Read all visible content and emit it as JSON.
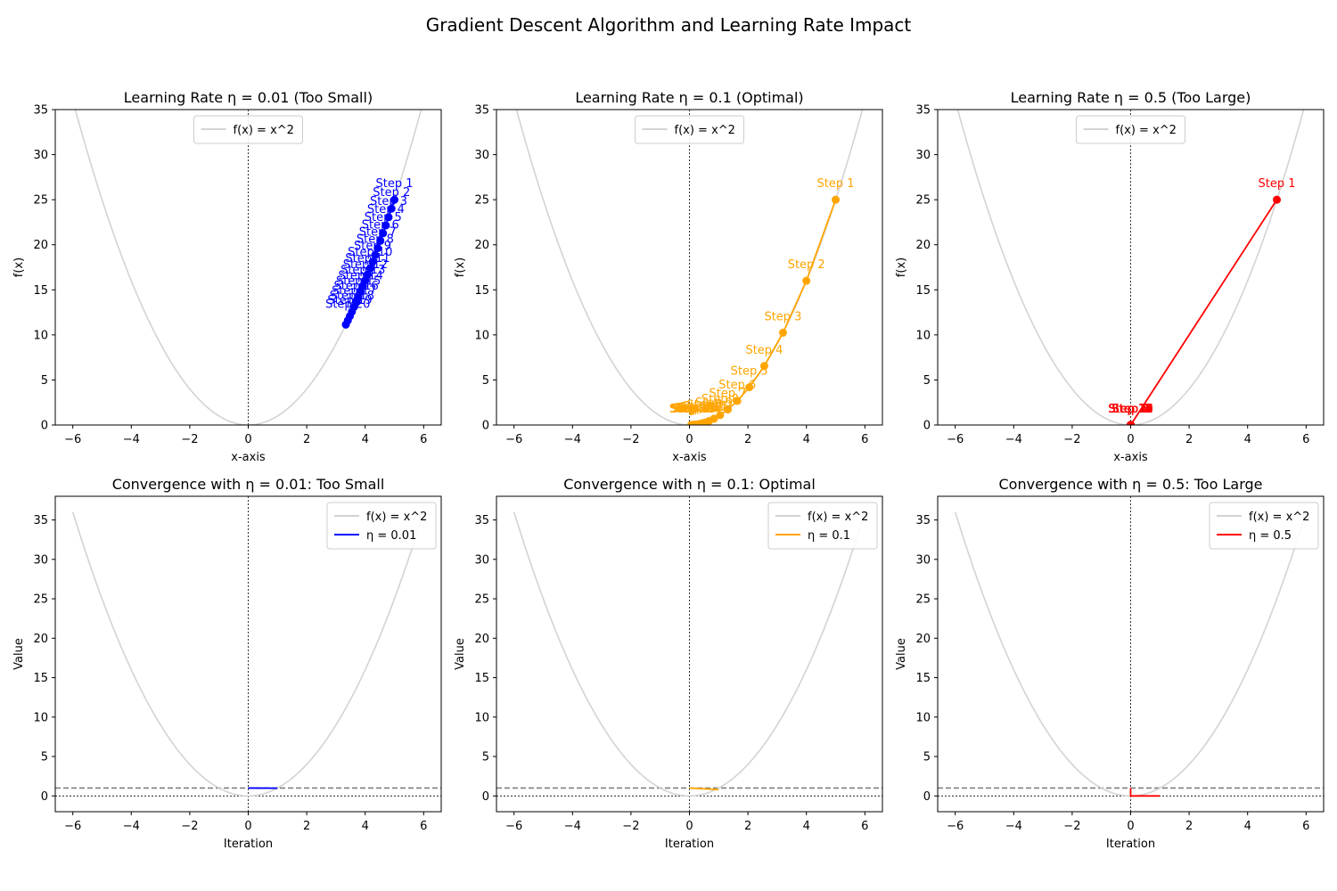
{
  "figure": {
    "title": "Gradient Descent Algorithm and Learning Rate Impact"
  },
  "colors": {
    "curve": "#d3d3d3",
    "eta_001": "#0000ff",
    "eta_01": "#ffa500",
    "eta_05": "#ff0000",
    "threshold": "#808080"
  },
  "chart_data": [
    {
      "type": "line",
      "title": "Learning Rate η = 0.01 (Too Small)",
      "xlabel": "x-axis",
      "ylabel": "f(x)",
      "xlim": [
        -6.6,
        6.6
      ],
      "ylim": [
        0,
        35
      ],
      "xticks": [
        -6,
        -4,
        -2,
        0,
        2,
        4,
        6
      ],
      "yticks": [
        0,
        5,
        10,
        15,
        20,
        25,
        30,
        35
      ],
      "legend": {
        "position": "upper-center",
        "entries": [
          "f(x) = x^2"
        ]
      },
      "curve": {
        "name": "f(x) = x^2",
        "x_range": [
          -6,
          6
        ],
        "function": "x^2"
      },
      "path": {
        "color_key": "eta_001",
        "annotation_prefix": "Step",
        "annotation_count": 20,
        "x": [
          5.0,
          4.9,
          4.802,
          4.706,
          4.612,
          4.52,
          4.429,
          4.341,
          4.254,
          4.169,
          4.085,
          4.004,
          3.924,
          3.845,
          3.768,
          3.693,
          3.619,
          3.547,
          3.476,
          3.406,
          3.338
        ],
        "y": [
          25.0,
          24.01,
          23.06,
          22.15,
          21.27,
          20.43,
          19.62,
          18.84,
          18.1,
          17.38,
          16.69,
          16.03,
          15.4,
          14.79,
          14.2,
          13.64,
          13.1,
          12.58,
          12.08,
          11.6,
          11.14
        ]
      }
    },
    {
      "type": "line",
      "title": "Learning Rate η = 0.1 (Optimal)",
      "xlabel": "x-axis",
      "ylabel": "f(x)",
      "xlim": [
        -6.6,
        6.6
      ],
      "ylim": [
        0,
        35
      ],
      "xticks": [
        -6,
        -4,
        -2,
        0,
        2,
        4,
        6
      ],
      "yticks": [
        0,
        5,
        10,
        15,
        20,
        25,
        30,
        35
      ],
      "legend": {
        "position": "upper-center",
        "entries": [
          "f(x) = x^2"
        ]
      },
      "curve": {
        "name": "f(x) = x^2",
        "x_range": [
          -6,
          6
        ],
        "function": "x^2"
      },
      "path": {
        "color_key": "eta_01",
        "annotation_prefix": "Step",
        "annotation_count": 20,
        "x": [
          5.0,
          4.0,
          3.2,
          2.56,
          2.048,
          1.638,
          1.311,
          1.049,
          0.839,
          0.671,
          0.537,
          0.429,
          0.344,
          0.275,
          0.22,
          0.176,
          0.141,
          0.113,
          0.09,
          0.072,
          0.058
        ],
        "y": [
          25.0,
          16.0,
          10.24,
          6.55,
          4.19,
          2.68,
          1.72,
          1.1,
          0.7,
          0.45,
          0.29,
          0.18,
          0.12,
          0.08,
          0.05,
          0.03,
          0.02,
          0.01,
          0.01,
          0.01,
          0.0
        ]
      }
    },
    {
      "type": "line",
      "title": "Learning Rate η = 0.5 (Too Large)",
      "xlabel": "x-axis",
      "ylabel": "f(x)",
      "xlim": [
        -6.6,
        6.6
      ],
      "ylim": [
        0,
        35
      ],
      "xticks": [
        -6,
        -4,
        -2,
        0,
        2,
        4,
        6
      ],
      "yticks": [
        0,
        5,
        10,
        15,
        20,
        25,
        30,
        35
      ],
      "legend": {
        "position": "upper-center",
        "entries": [
          "f(x) = x^2"
        ]
      },
      "curve": {
        "name": "f(x) = x^2",
        "x_range": [
          -6,
          6
        ],
        "function": "x^2"
      },
      "path": {
        "color_key": "eta_05",
        "annotation_prefix": "Step",
        "annotation_count": 20,
        "x": [
          5.0,
          0,
          0,
          0,
          0,
          0,
          0,
          0,
          0,
          0,
          0,
          0,
          0,
          0,
          0,
          0,
          0,
          0,
          0,
          0,
          0
        ],
        "y": [
          25.0,
          0,
          0,
          0,
          0,
          0,
          0,
          0,
          0,
          0,
          0,
          0,
          0,
          0,
          0,
          0,
          0,
          0,
          0,
          0,
          0
        ]
      }
    },
    {
      "type": "line",
      "title": "Convergence with η = 0.01: Too Small",
      "xlabel": "Iteration",
      "ylabel": "Value",
      "xlim": [
        -6.6,
        6.6
      ],
      "ylim": [
        -2,
        38
      ],
      "xticks": [
        -6,
        -4,
        -2,
        0,
        2,
        4,
        6
      ],
      "yticks": [
        0,
        5,
        10,
        15,
        20,
        25,
        30,
        35
      ],
      "legend": {
        "position": "upper-right",
        "entries": [
          "f(x) = x^2",
          "η = 0.01"
        ]
      },
      "curve": {
        "name": "f(x) = x^2",
        "x_range": [
          -6,
          6
        ],
        "function": "x^2"
      },
      "threshold_y": 1,
      "series": [
        {
          "name": "η = 0.01",
          "color_key": "eta_001",
          "x": [
            0,
            1
          ],
          "y": [
            1.0,
            0.98
          ]
        }
      ]
    },
    {
      "type": "line",
      "title": "Convergence with η = 0.1: Optimal",
      "xlabel": "Iteration",
      "ylabel": "Value",
      "xlim": [
        -6.6,
        6.6
      ],
      "ylim": [
        -2,
        38
      ],
      "xticks": [
        -6,
        -4,
        -2,
        0,
        2,
        4,
        6
      ],
      "yticks": [
        0,
        5,
        10,
        15,
        20,
        25,
        30,
        35
      ],
      "legend": {
        "position": "upper-right",
        "entries": [
          "f(x) = x^2",
          "η = 0.1"
        ]
      },
      "curve": {
        "name": "f(x) = x^2",
        "x_range": [
          -6,
          6
        ],
        "function": "x^2"
      },
      "threshold_y": 1,
      "series": [
        {
          "name": "η = 0.1",
          "color_key": "eta_01",
          "x": [
            0,
            1
          ],
          "y": [
            1.0,
            0.8
          ]
        }
      ]
    },
    {
      "type": "line",
      "title": "Convergence with η = 0.5: Too Large",
      "xlabel": "Iteration",
      "ylabel": "Value",
      "xlim": [
        -6.6,
        6.6
      ],
      "ylim": [
        -2,
        38
      ],
      "xticks": [
        -6,
        -4,
        -2,
        0,
        2,
        4,
        6
      ],
      "yticks": [
        0,
        5,
        10,
        15,
        20,
        25,
        30,
        35
      ],
      "legend": {
        "position": "upper-right",
        "entries": [
          "f(x) = x^2",
          "η = 0.5"
        ]
      },
      "curve": {
        "name": "f(x) = x^2",
        "x_range": [
          -6,
          6
        ],
        "function": "x^2"
      },
      "threshold_y": 1,
      "series": [
        {
          "name": "η = 0.5",
          "color_key": "eta_05",
          "x": [
            0,
            0,
            1
          ],
          "y": [
            1.0,
            0.0,
            0.0
          ]
        }
      ]
    }
  ]
}
